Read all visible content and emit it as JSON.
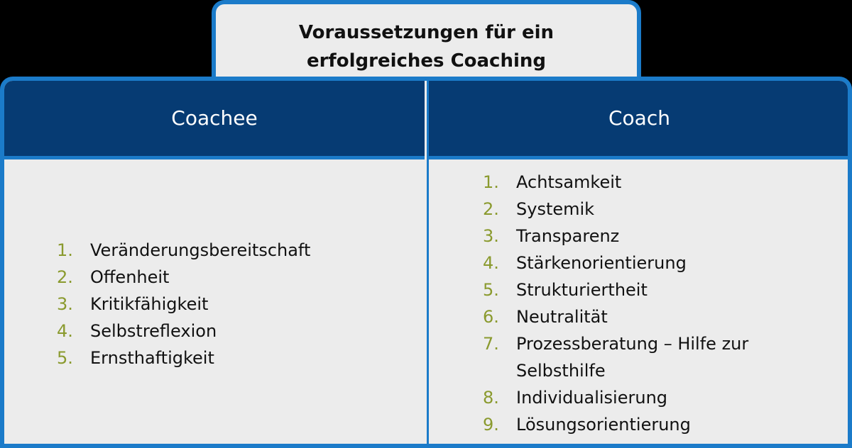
{
  "title": {
    "line1": "Voraussetzungen für ein",
    "line2": "erfolgreiches Coaching"
  },
  "colors": {
    "border": "#1b7bc9",
    "header": "#063b73",
    "body": "#ececec",
    "number": "#8a9a2e"
  },
  "columns": [
    {
      "header": "Coachee",
      "items": [
        {
          "num": "1.",
          "text": "Veränderungsbereitschaft"
        },
        {
          "num": "2.",
          "text": "Offenheit"
        },
        {
          "num": "3.",
          "text": "Kritikfähigkeit"
        },
        {
          "num": "4.",
          "text": "Selbstreflexion"
        },
        {
          "num": "5.",
          "text": "Ernsthaftigkeit"
        }
      ]
    },
    {
      "header": "Coach",
      "items": [
        {
          "num": "1.",
          "text": "Achtsamkeit"
        },
        {
          "num": "2.",
          "text": "Systemik"
        },
        {
          "num": "3.",
          "text": "Transparenz"
        },
        {
          "num": "4.",
          "text": "Stärkenorientierung"
        },
        {
          "num": "5.",
          "text": "Strukturiertheit"
        },
        {
          "num": "6.",
          "text": "Neutralität"
        },
        {
          "num": "7.",
          "text": "Prozessberatung – Hilfe zur Selbsthilfe"
        },
        {
          "num": "8.",
          "text": "Individualisierung"
        },
        {
          "num": "9.",
          "text": "Lösungsorientierung"
        }
      ]
    }
  ]
}
